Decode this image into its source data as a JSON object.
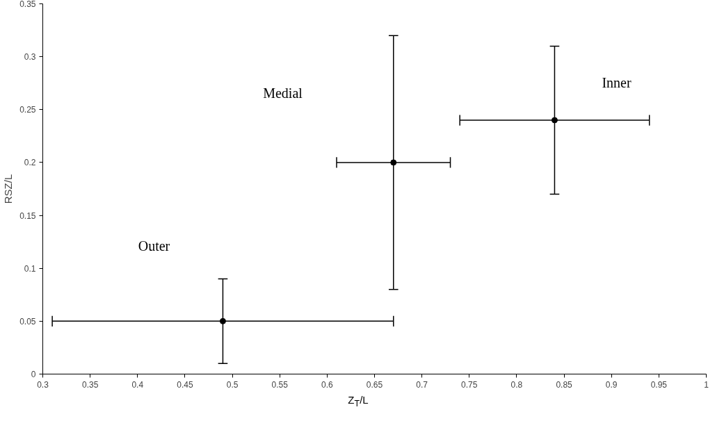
{
  "chart_data": {
    "type": "scatter",
    "xlabel": "Z$_{T}$/L",
    "ylabel": "RSZ/L",
    "series": [
      {
        "color": "#000000",
        "x": [
          0.49,
          0.67,
          0.84
        ],
        "values": [
          0.05,
          0.2,
          0.24
        ],
        "errors": [
          [
            0.01,
            0.09
          ],
          [
            0.08,
            0.32
          ],
          [
            0.17,
            0.31
          ]
        ],
        "xerrors": [
          [
            0.31,
            0.67
          ],
          [
            0.61,
            0.73
          ],
          [
            0.74,
            0.94
          ]
        ]
      }
    ],
    "annotations": [
      "Outer",
      "Medial",
      "Inner"
    ],
    "marker": "circle",
    "xlim": [
      0.3,
      1
    ],
    "ylim": [
      0,
      0.35
    ],
    "xticks": [
      0.3,
      0.35,
      0.4,
      0.45,
      0.5,
      0.55,
      0.6,
      0.65,
      0.7,
      0.75,
      0.8,
      0.85,
      0.9,
      0.95,
      1
    ],
    "yticks": [
      0,
      0.05,
      0.1,
      0.15,
      0.2,
      0.25,
      0.3,
      0.35
    ],
    "grid": false
  }
}
